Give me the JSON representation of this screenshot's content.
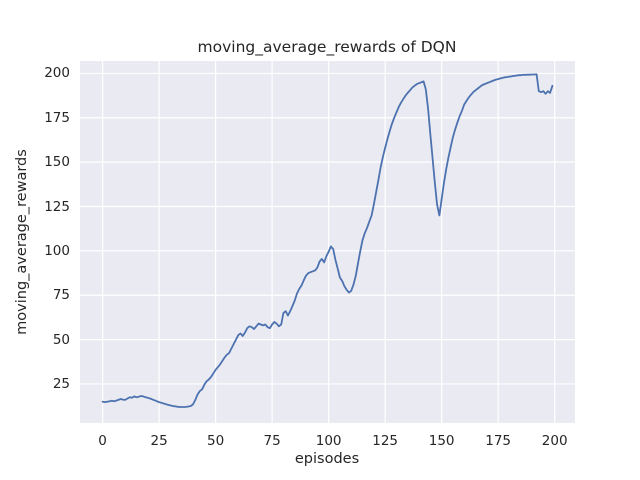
{
  "style": {
    "figure_bg": "#ffffff",
    "plot_bg": "#eaeaf2",
    "grid_color": "#ffffff",
    "text_color": "#262626",
    "line_color": "#4c72b0"
  },
  "chart_data": {
    "type": "line",
    "title": "moving_average_rewards of DQN",
    "xlabel": "episodes",
    "ylabel": "moving_average_rewards",
    "legend": "none",
    "grid": true,
    "x_ticks": [
      0,
      25,
      50,
      75,
      100,
      125,
      150,
      175,
      200
    ],
    "y_ticks": [
      25,
      50,
      75,
      100,
      125,
      150,
      175,
      200
    ],
    "xlim": [
      -10,
      209
    ],
    "ylim": [
      3,
      207
    ],
    "x_start": 0,
    "x_step": 1,
    "x_range": [
      0,
      199
    ],
    "series": [
      {
        "name": "moving_average_rewards",
        "color": "#4c72b0",
        "y": [
          15.0,
          14.8,
          15.0,
          15.2,
          15.5,
          15.3,
          15.6,
          16.0,
          16.5,
          16.2,
          16.0,
          16.8,
          17.5,
          17.2,
          18.0,
          17.5,
          17.8,
          18.2,
          18.0,
          17.5,
          17.2,
          16.8,
          16.3,
          15.8,
          15.3,
          14.8,
          14.4,
          14.0,
          13.6,
          13.2,
          12.9,
          12.6,
          12.4,
          12.2,
          12.0,
          12.0,
          12.0,
          12.1,
          12.3,
          12.6,
          13.5,
          16.0,
          19.0,
          21.0,
          22.0,
          24.5,
          26.5,
          27.5,
          29.0,
          31.0,
          33.0,
          34.5,
          36.0,
          38.0,
          40.0,
          41.5,
          42.5,
          45.0,
          47.5,
          50.0,
          52.5,
          53.5,
          52.0,
          54.0,
          56.5,
          57.5,
          57.0,
          56.0,
          57.5,
          59.0,
          58.5,
          58.0,
          58.5,
          57.0,
          56.5,
          58.5,
          60.0,
          59.0,
          57.5,
          58.5,
          65.0,
          66.0,
          63.5,
          66.0,
          69.0,
          72.0,
          76.0,
          78.5,
          80.5,
          83.5,
          86.0,
          87.5,
          88.0,
          88.5,
          89.0,
          90.5,
          94.0,
          95.5,
          93.5,
          97.0,
          99.5,
          102.5,
          101.0,
          95.0,
          90.0,
          85.0,
          83.0,
          80.0,
          78.0,
          76.5,
          77.5,
          81.0,
          86.0,
          93.0,
          100.0,
          106.0,
          110.0,
          113.0,
          116.5,
          120.0,
          126.0,
          133.0,
          140.0,
          147.0,
          153.0,
          158.0,
          163.0,
          167.5,
          171.5,
          175.0,
          178.0,
          181.0,
          183.5,
          185.5,
          187.5,
          189.0,
          190.5,
          192.0,
          193.0,
          194.0,
          194.5,
          195.0,
          195.5,
          191.0,
          180.0,
          166.0,
          152.0,
          138.0,
          126.0,
          120.0,
          129.0,
          138.0,
          146.0,
          152.5,
          158.5,
          164.0,
          168.5,
          172.5,
          176.0,
          179.0,
          182.5,
          184.5,
          186.5,
          188.0,
          189.5,
          190.5,
          191.5,
          192.5,
          193.5,
          194.0,
          194.5,
          195.0,
          195.5,
          196.0,
          196.5,
          196.8,
          197.2,
          197.5,
          197.8,
          198.0,
          198.2,
          198.4,
          198.6,
          198.8,
          199.0,
          199.0,
          199.2,
          199.2,
          199.3,
          199.3,
          199.4,
          199.4,
          199.5,
          190.0,
          189.5,
          190.0,
          188.5,
          190.0,
          189.0,
          193.0
        ]
      }
    ]
  }
}
